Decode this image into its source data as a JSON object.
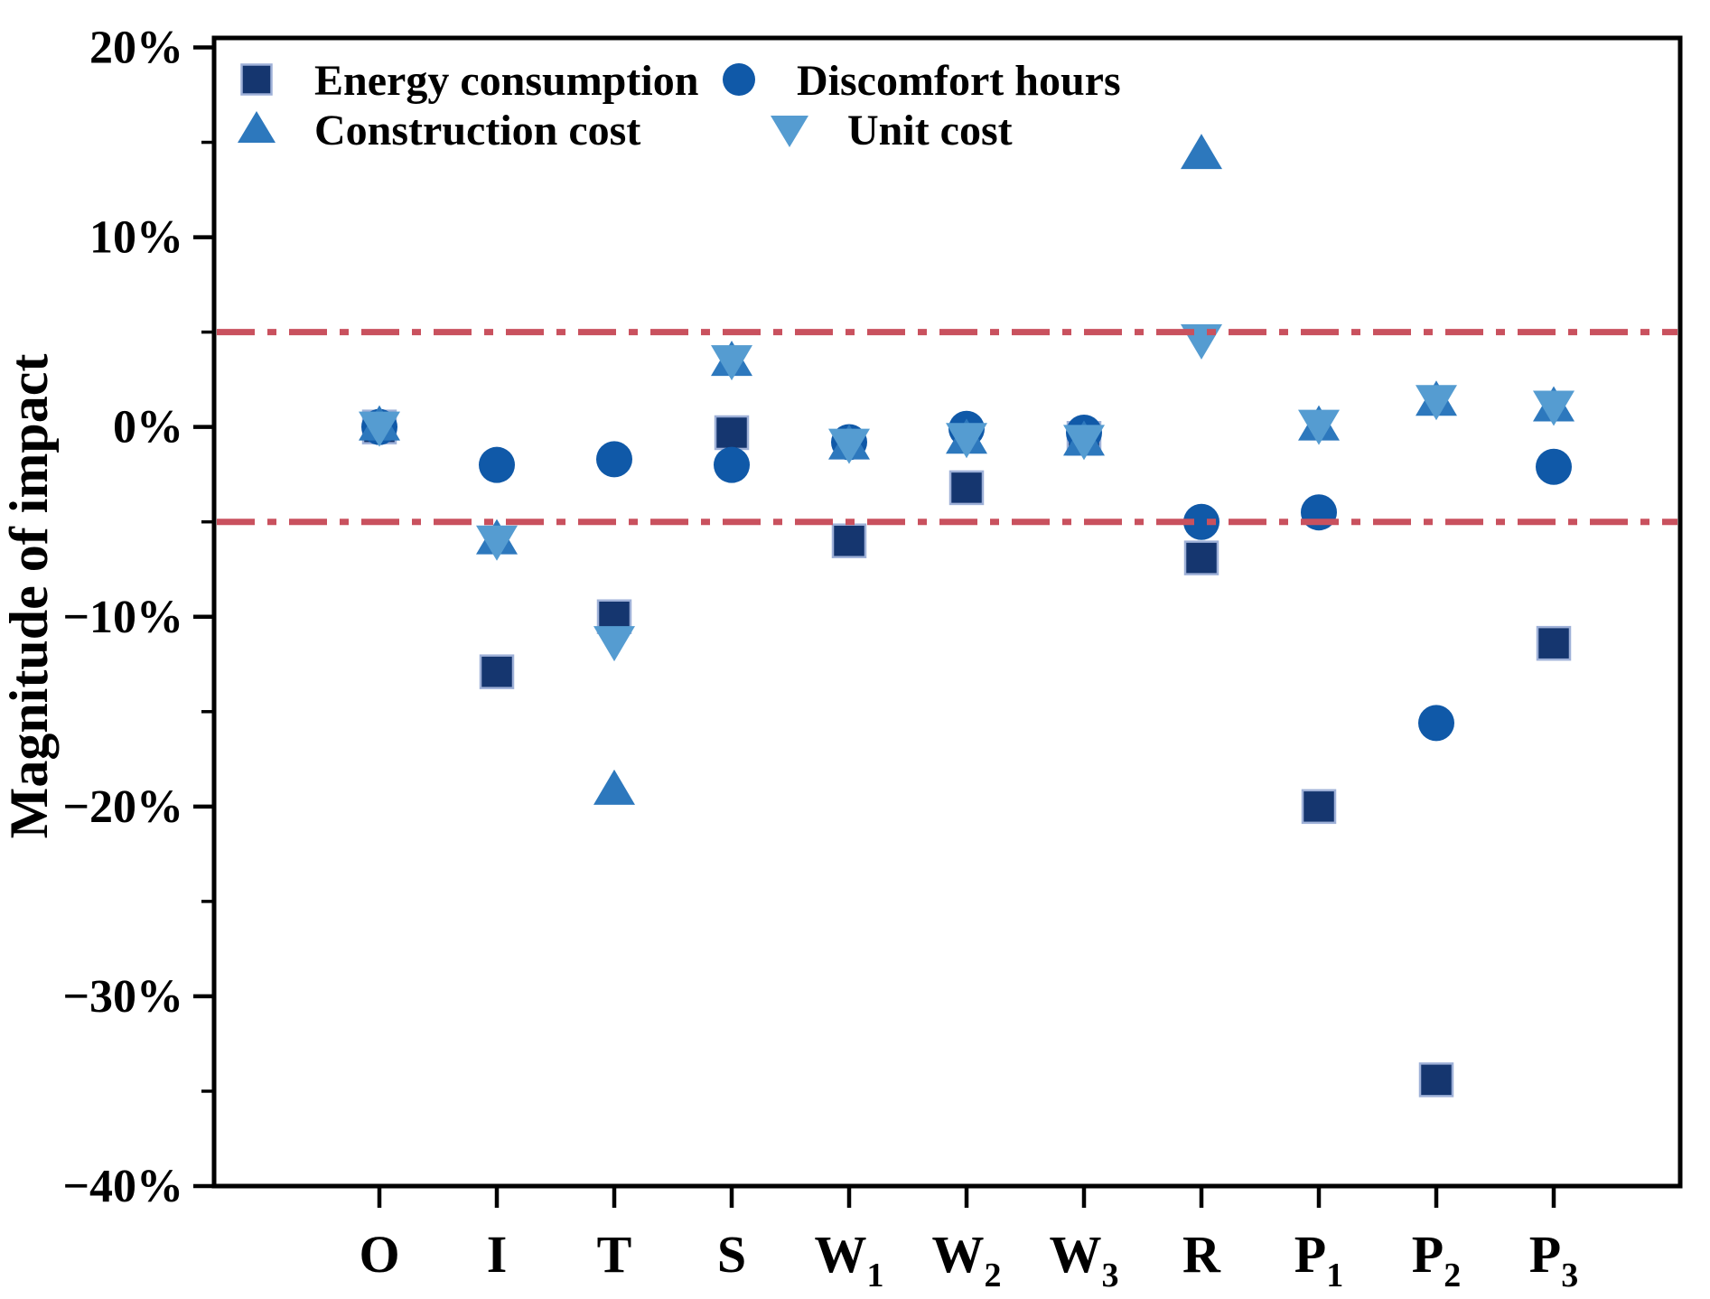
{
  "figure": {
    "title": "",
    "ylabel": "Magnitude of impact"
  },
  "chart_data": {
    "type": "scatter",
    "title": "",
    "xlabel": "",
    "ylabel": "Magnitude of impact",
    "y_unit": "%",
    "ylim": [
      -40,
      20.5
    ],
    "y_major_ticks": [
      20,
      10,
      0,
      -10,
      -20,
      -30,
      -40
    ],
    "y_major_tick_labels": [
      "20%",
      "10%",
      "0%",
      "−10%",
      "−20%",
      "−30%",
      "−40%"
    ],
    "y_minor_ticks": [
      15,
      5,
      -5,
      -15,
      -25,
      -35
    ],
    "grid": false,
    "reference_lines": {
      "values": [
        5,
        -5
      ],
      "style": "dash-dot",
      "color": "#c9515e"
    },
    "categories": [
      {
        "text": "O",
        "sub": ""
      },
      {
        "text": "I",
        "sub": ""
      },
      {
        "text": "T",
        "sub": ""
      },
      {
        "text": "S",
        "sub": ""
      },
      {
        "text": "W",
        "sub": "1"
      },
      {
        "text": "W",
        "sub": "2"
      },
      {
        "text": "W",
        "sub": "3"
      },
      {
        "text": "R",
        "sub": ""
      },
      {
        "text": "P",
        "sub": "1"
      },
      {
        "text": "P",
        "sub": "2"
      },
      {
        "text": "P",
        "sub": "3"
      }
    ],
    "series": [
      {
        "name": "Energy consumption",
        "marker": "square",
        "color": "#15366f",
        "edge_color": "#9fb1d8",
        "values": [
          0.0,
          -12.9,
          -10.0,
          -0.3,
          -6.0,
          -3.2,
          -0.6,
          -6.9,
          -20.0,
          -34.4,
          -11.4
        ]
      },
      {
        "name": "Discomfort hours",
        "marker": "circle",
        "color": "#1059a8",
        "edge_color": "#1059a8",
        "values": [
          0.0,
          -2.0,
          -1.7,
          -2.0,
          -0.8,
          -0.1,
          -0.3,
          -5.0,
          -4.5,
          -15.6,
          -2.1
        ]
      },
      {
        "name": "Construction cost",
        "marker": "triangle-up",
        "color": "#2d78bd",
        "edge_color": "#2d78bd",
        "values": [
          0.1,
          -5.9,
          -19.1,
          3.5,
          -0.9,
          -0.6,
          -0.7,
          14.4,
          0.1,
          1.4,
          1.1
        ]
      },
      {
        "name": "Unit cost",
        "marker": "triangle-down",
        "color": "#559cd1",
        "edge_color": "#559cd1",
        "values": [
          0.0,
          -6.0,
          -11.3,
          3.5,
          -0.9,
          -0.6,
          -0.7,
          4.6,
          0.1,
          1.4,
          1.1
        ]
      }
    ],
    "legend": {
      "position": "top-left",
      "rows": [
        [
          "Energy consumption",
          "Discomfort hours"
        ],
        [
          "Construction cost",
          "Unit cost"
        ]
      ]
    }
  }
}
